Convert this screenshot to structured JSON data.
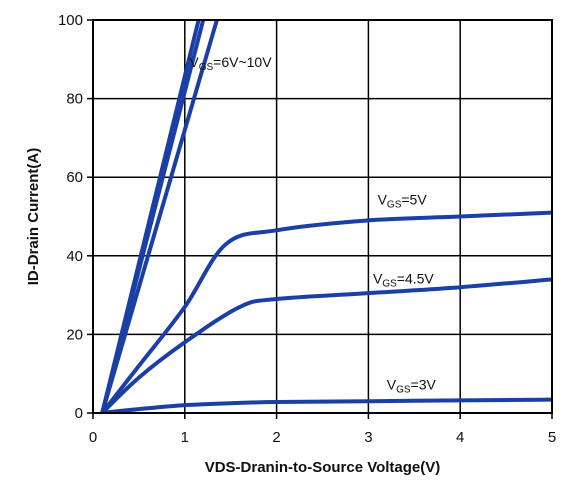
{
  "chart_data": {
    "type": "line",
    "title": "",
    "xlabel": "VDS-Dranin-to-Source Voltage(V)",
    "ylabel": "ID-Drain Current(A)",
    "xlim": [
      0,
      5
    ],
    "ylim": [
      0,
      100
    ],
    "x_ticks": [
      "0",
      "1",
      "2",
      "3",
      "4",
      "5"
    ],
    "y_ticks": [
      "0",
      "20",
      "40",
      "60",
      "80",
      "100"
    ],
    "grid": true,
    "line_color": "#1a3fa6",
    "series": [
      {
        "name": "VGS=6V~10V",
        "x": [
          0.1,
          1.15
        ],
        "y": [
          0,
          100
        ]
      },
      {
        "name": "VGS=6V~10V",
        "x": [
          0.1,
          1.2
        ],
        "y": [
          0,
          100
        ]
      },
      {
        "name": "VGS=6V~10V",
        "x": [
          0.1,
          1.35
        ],
        "y": [
          0,
          100
        ]
      },
      {
        "name": "VGS=5V",
        "x": [
          0.1,
          0.5,
          1.0,
          1.45,
          2.0,
          3.0,
          4.0,
          5.0
        ],
        "y": [
          0,
          12,
          27,
          43,
          46.5,
          49,
          50,
          51
        ]
      },
      {
        "name": "VGS=4.5V",
        "x": [
          0.1,
          0.5,
          1.0,
          1.6,
          2.0,
          3.0,
          4.0,
          5.0
        ],
        "y": [
          0,
          9,
          18,
          27,
          29,
          30.5,
          32,
          34
        ]
      },
      {
        "name": "VGS=3V",
        "x": [
          0.1,
          0.5,
          1.0,
          1.5,
          2.0,
          3.0,
          4.0,
          5.0
        ],
        "y": [
          0,
          1,
          2,
          2.5,
          2.8,
          3,
          3.2,
          3.4
        ]
      }
    ],
    "annotations": [
      {
        "text_sub": "GS",
        "text_main": "=6V~10V",
        "x": 1.05,
        "y": 88
      },
      {
        "text_sub": "GS",
        "text_main": "=5V",
        "x": 3.1,
        "y": 53
      },
      {
        "text_sub": "GS",
        "text_main": "=4.5V",
        "x": 3.05,
        "y": 33
      },
      {
        "text_sub": "GS",
        "text_main": "=3V",
        "x": 3.2,
        "y": 6
      }
    ]
  }
}
